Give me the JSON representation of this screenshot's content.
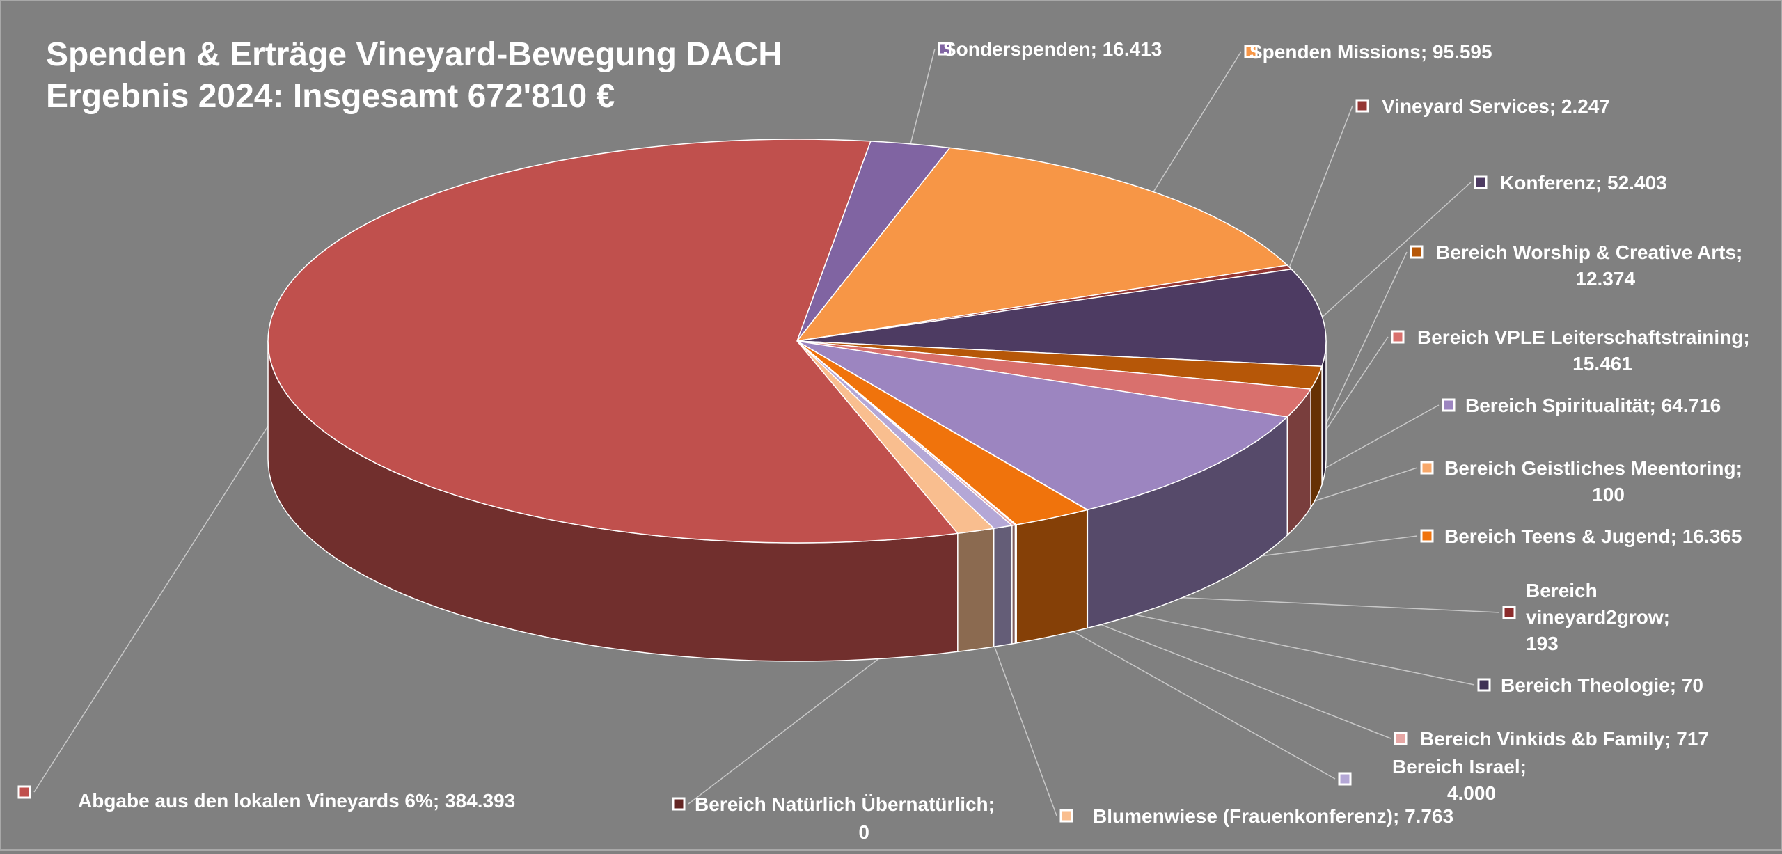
{
  "chart_data": {
    "type": "pie",
    "title_lines": [
      "Spenden & Erträge Vineyard-Bewegung DACH",
      "Ergebnis 2024: Insgesamt 672'810 €"
    ],
    "legend": "none",
    "slices": [
      {
        "name": "Sonderspenden",
        "value": 16413,
        "value_label": "16.413",
        "color": "#8064a2",
        "label_lines": [
          "Sonderspenden; 16.413"
        ]
      },
      {
        "name": "Spenden Missions",
        "value": 95595,
        "value_label": "95.595",
        "color": "#f79646",
        "label_lines": [
          "Spenden Missions; 95.595"
        ]
      },
      {
        "name": "Vineyard Services",
        "value": 2247,
        "value_label": "2.247",
        "color": "#943634",
        "label_lines": [
          "Vineyard Services; 2.247"
        ]
      },
      {
        "name": "Konferenz",
        "value": 52403,
        "value_label": "52.403",
        "color": "#4d3b62",
        "label_lines": [
          "Konferenz; 52.403"
        ]
      },
      {
        "name": "Bereich Worship & Creative Arts",
        "value": 12374,
        "value_label": "12.374",
        "color": "#b65708",
        "label_lines": [
          "Bereich Worship & Creative Arts;",
          "12.374"
        ]
      },
      {
        "name": "Bereich VPLE Leiterschaftstraining",
        "value": 15461,
        "value_label": "15.461",
        "color": "#d9706d",
        "label_lines": [
          "Bereich VPLE Leiterschaftstraining;",
          "15.461"
        ]
      },
      {
        "name": "Bereich Spiritualität",
        "value": 64716,
        "value_label": "64.716",
        "color": "#9c85c0",
        "label_lines": [
          "Bereich Spiritualität; 64.716"
        ]
      },
      {
        "name": "Bereich Geistliches Meentoring",
        "value": 100,
        "value_label": "100",
        "color": "#f8a86a",
        "label_lines": [
          "Bereich Geistliches Meentoring;",
          "100"
        ]
      },
      {
        "name": "Bereich Teens & Jugend",
        "value": 16365,
        "value_label": "16.365",
        "color": "#f0730c",
        "label_lines": [
          "Bereich Teens & Jugend; 16.365"
        ]
      },
      {
        "name": "Bereich vineyard2grow",
        "value": 193,
        "value_label": "193",
        "color": "#8b2b2b",
        "label_lines": [
          "Bereich",
          "vineyard2grow;",
          "193"
        ]
      },
      {
        "name": "Bereich Theologie",
        "value": 70,
        "value_label": "70",
        "color": "#3f3156",
        "label_lines": [
          "Bereich Theologie; 70"
        ]
      },
      {
        "name": "Bereich Vinkids &b Family",
        "value": 717,
        "value_label": "717",
        "color": "#e6a6a4",
        "label_lines": [
          "Bereich Vinkids &b Family; 717"
        ]
      },
      {
        "name": "Bereich Israel",
        "value": 4000,
        "value_label": "4.000",
        "color": "#b4a7d6",
        "label_lines": [
          "Bereich Israel;",
          "4.000"
        ]
      },
      {
        "name": "Blumenwiese (Frauenkonferenz)",
        "value": 7763,
        "value_label": "7.763",
        "color": "#f9be8f",
        "label_lines": [
          "Blumenwiese (Frauenkonferenz); 7.763"
        ]
      },
      {
        "name": "Bereich Natürlich Übernatürlich",
        "value": 0,
        "value_label": "0",
        "color": "#632523",
        "label_lines": [
          "Bereich Natürlich Übernatürlich;",
          "0"
        ]
      },
      {
        "name": "Abgabe aus den lokalen Vineyards 6%",
        "value": 384393,
        "value_label": "384.393",
        "color": "#c0504d",
        "label_lines": [
          "Abgabe aus den lokalen Vineyards 6%; 384.393"
        ]
      }
    ]
  }
}
